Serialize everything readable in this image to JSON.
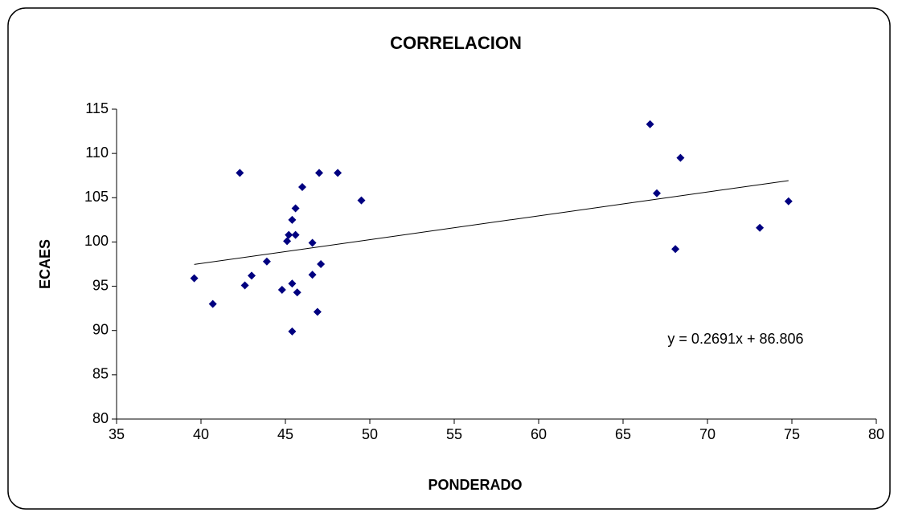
{
  "chart_data": {
    "type": "scatter",
    "title": "CORRELACION",
    "x_label": "PONDERADO",
    "y_label": "ECAES",
    "x": [
      39.6,
      40.7,
      42.3,
      42.6,
      43.0,
      43.9,
      44.8,
      45.1,
      45.2,
      45.6,
      45.4,
      45.6,
      46.0,
      45.4,
      45.7,
      45.4,
      46.6,
      46.6,
      47.1,
      46.9,
      47.0,
      48.1,
      49.5,
      66.6,
      68.4,
      67.0,
      68.1,
      73.1,
      74.8
    ],
    "values": [
      95.9,
      93.0,
      107.8,
      95.1,
      96.2,
      97.8,
      94.6,
      100.1,
      100.8,
      100.8,
      102.5,
      103.8,
      106.2,
      95.3,
      94.3,
      89.9,
      99.9,
      96.3,
      97.5,
      92.1,
      107.8,
      107.8,
      104.7,
      113.3,
      109.5,
      105.5,
      99.2,
      101.6,
      104.6
    ],
    "color": "#000080",
    "xlim": [
      35,
      80
    ],
    "xticks": [
      35,
      40,
      45,
      50,
      55,
      60,
      65,
      70,
      75,
      80
    ],
    "ylim": [
      80,
      115
    ],
    "yticks": [
      80,
      85,
      90,
      95,
      100,
      105,
      110,
      115
    ],
    "trendline": {
      "label": "y = 0.2691x + 86.806",
      "slope": 0.2691,
      "intercept": 86.806
    }
  }
}
